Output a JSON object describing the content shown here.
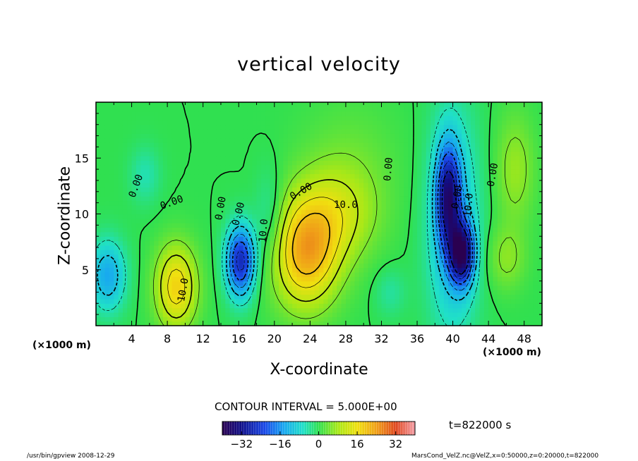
{
  "chart_data": {
    "type": "heatmap",
    "title": "vertical velocity",
    "xlabel": "X-coordinate",
    "ylabel": "Z-coordinate",
    "x_unit": "(×1000 m)",
    "x_ticks": [
      4,
      8,
      12,
      16,
      20,
      24,
      28,
      32,
      36,
      40,
      44,
      48
    ],
    "y_ticks": [
      5,
      10,
      15
    ],
    "xlim": [
      0,
      50
    ],
    "ylim": [
      0,
      20
    ],
    "contour_interval_text": "CONTOUR INTERVAL = 5.000E+00",
    "contour_labels": [
      "0.00",
      "0.00",
      "0.00",
      "0.00",
      "0.00",
      "0.00",
      "0.00",
      "0.00",
      "10.0",
      "10.0",
      "10.0",
      "10.0"
    ],
    "colorbar": {
      "range": [
        -40,
        40
      ],
      "ticks": [
        -32,
        -16,
        0,
        16,
        32
      ],
      "tick_labels": [
        "−32",
        "−16",
        "0",
        "16",
        "32"
      ]
    },
    "time_label": "t=822000 s",
    "features": [
      {
        "x": 23.5,
        "z": 6.5,
        "value": 22,
        "sx": 2.6,
        "sz": 3.4
      },
      {
        "x": 9.0,
        "z": 3.5,
        "value": 18,
        "sx": 1.6,
        "sz": 2.6
      },
      {
        "x": 27.0,
        "z": 10.0,
        "value": 10,
        "sx": 3.2,
        "sz": 3.0
      },
      {
        "x": 16.2,
        "z": 5.8,
        "value": -28,
        "sx": 1.1,
        "sz": 2.2
      },
      {
        "x": 41.0,
        "z": 6.5,
        "value": -34,
        "sx": 0.9,
        "sz": 1.9
      },
      {
        "x": 39.5,
        "z": 11.5,
        "value": -28,
        "sx": 0.9,
        "sz": 3.2
      },
      {
        "x": 40.0,
        "z": 9.0,
        "value": -12,
        "sx": 2.0,
        "sz": 7.0
      },
      {
        "x": 1.3,
        "z": 4.5,
        "value": -14,
        "sx": 1.4,
        "sz": 2.2
      },
      {
        "x": 5.5,
        "z": 13.5,
        "value": -5,
        "sx": 1.2,
        "sz": 1.8
      },
      {
        "x": 19.5,
        "z": 9.5,
        "value": -6,
        "sx": 1.2,
        "sz": 3.0
      },
      {
        "x": 47.0,
        "z": 14.0,
        "value": 7,
        "sx": 1.5,
        "sz": 3.5
      },
      {
        "x": 46.0,
        "z": 6.0,
        "value": 6,
        "sx": 1.5,
        "sz": 2.0
      },
      {
        "x": 33.0,
        "z": 3.0,
        "value": -4,
        "sx": 1.2,
        "sz": 1.5
      },
      {
        "x": 28.5,
        "z": 15.0,
        "value": 3,
        "sx": 4.0,
        "sz": 4.0
      }
    ]
  },
  "footer": {
    "program": "/usr/bin/gpview   2008-12-29",
    "source": "MarsCond_VelZ.nc@VelZ,x=0:50000,z=0:20000,t=822000"
  }
}
